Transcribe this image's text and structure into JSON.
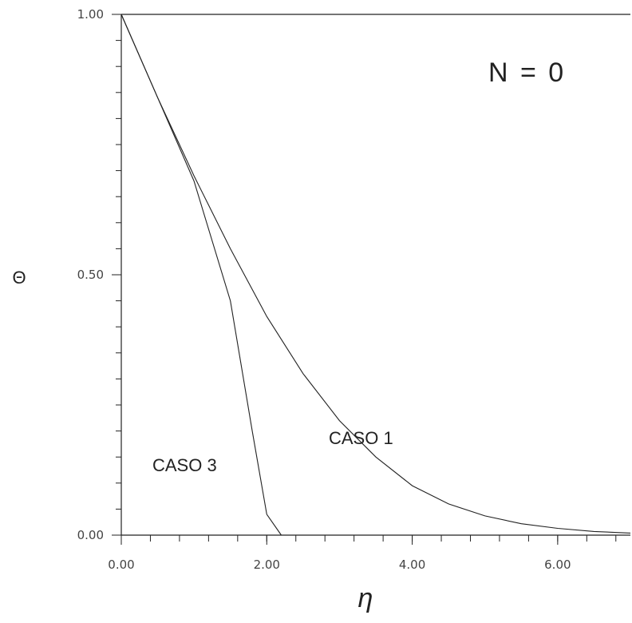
{
  "chart_data": {
    "type": "line",
    "title": "",
    "xlabel": "η",
    "ylabel": "Θ",
    "xlim": [
      0,
      7
    ],
    "ylim": [
      0,
      1
    ],
    "xticks": [
      "0.00",
      "2.00",
      "4.00",
      "6.00"
    ],
    "xtick_values": [
      0,
      2,
      4,
      6
    ],
    "yticks": [
      "0.00",
      "0.50",
      "1.00"
    ],
    "ytick_values": [
      0,
      0.5,
      1
    ],
    "x_minor_step": 0.4,
    "y_minor_step": 0.05,
    "grid": false,
    "annotation": "N = 0",
    "series": [
      {
        "name": "CASO 1",
        "x": [
          0,
          0.5,
          1.0,
          1.5,
          2.0,
          2.5,
          3.0,
          3.5,
          4.0,
          4.5,
          5.0,
          5.5,
          6.0,
          6.5,
          7.0
        ],
        "y": [
          1.0,
          0.84,
          0.69,
          0.55,
          0.42,
          0.31,
          0.22,
          0.15,
          0.095,
          0.06,
          0.037,
          0.022,
          0.013,
          0.007,
          0.004
        ]
      },
      {
        "name": "CASO 3",
        "x": [
          0,
          0.5,
          1.0,
          1.5,
          1.8,
          2.0,
          2.2
        ],
        "y": [
          1.0,
          0.84,
          0.68,
          0.45,
          0.2,
          0.04,
          0.0
        ]
      }
    ]
  }
}
